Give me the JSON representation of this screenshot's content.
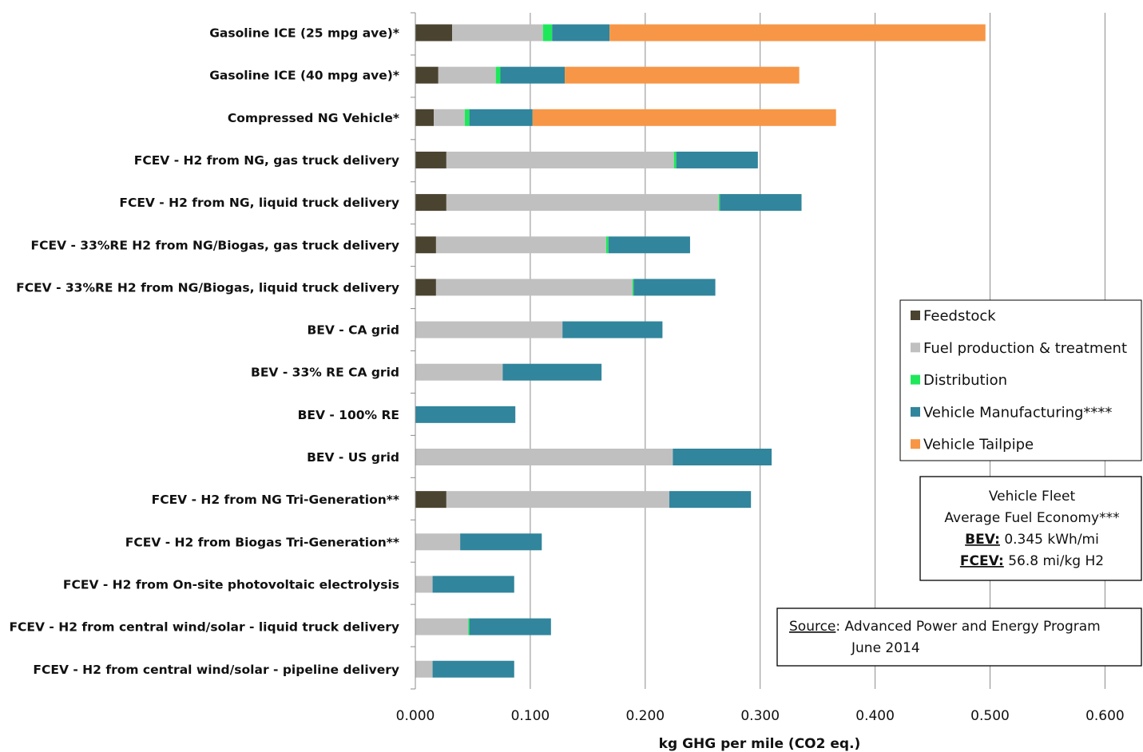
{
  "chart_data": {
    "type": "bar",
    "orientation": "horizontal",
    "stacked": true,
    "categories": [
      "Gasoline ICE (25 mpg ave)*",
      "Gasoline ICE (40 mpg ave)*",
      "Compressed NG Vehicle*",
      "FCEV - H2 from NG, gas truck delivery",
      "FCEV - H2 from NG, liquid truck delivery",
      "FCEV - 33%RE H2 from NG/Biogas, gas truck delivery",
      "FCEV - 33%RE H2 from NG/Biogas, liquid truck delivery",
      "BEV - CA grid",
      "BEV - 33% RE CA grid",
      "BEV - 100% RE",
      "BEV - US grid",
      "FCEV - H2 from NG Tri-Generation**",
      "FCEV - H2 from Biogas Tri-Generation**",
      "FCEV - H2 from On-site photovoltaic electrolysis",
      "FCEV - H2 from central wind/solar - liquid truck delivery",
      "FCEV - H2 from central wind/solar - pipeline delivery"
    ],
    "series": [
      {
        "name": "Feedstock",
        "color": "#4a4330",
        "values": [
          0.032,
          0.02,
          0.016,
          0.027,
          0.027,
          0.018,
          0.018,
          0,
          0,
          0,
          0,
          0.027,
          0,
          0,
          0,
          0
        ]
      },
      {
        "name": "Fuel production & treatment",
        "color": "#c0c0c0",
        "values": [
          0.079,
          0.05,
          0.027,
          0.198,
          0.237,
          0.148,
          0.171,
          0.128,
          0.076,
          0,
          0.224,
          0.194,
          0.039,
          0.015,
          0.046,
          0.015
        ]
      },
      {
        "name": "Distribution",
        "color": "#1ee85a",
        "values": [
          0.008,
          0.004,
          0.004,
          0.002,
          0.001,
          0.002,
          0.001,
          0,
          0,
          0,
          0,
          0,
          0,
          0,
          0.001,
          0
        ]
      },
      {
        "name": "Vehicle Manufacturing****",
        "color": "#31859c",
        "values": [
          0.05,
          0.056,
          0.055,
          0.071,
          0.071,
          0.071,
          0.071,
          0.087,
          0.086,
          0.087,
          0.086,
          0.071,
          0.071,
          0.071,
          0.071,
          0.071
        ]
      },
      {
        "name": "Vehicle Tailpipe",
        "color": "#f79646",
        "values": [
          0.327,
          0.204,
          0.264,
          0,
          0,
          0,
          0,
          0,
          0,
          0,
          0,
          0,
          0,
          0,
          0,
          0
        ]
      }
    ],
    "xlabel": "kg GHG per mile (CO2 eq.)",
    "xlim": [
      0,
      0.6
    ],
    "xticks": [
      "0.000",
      "0.100",
      "0.200",
      "0.300",
      "0.400",
      "0.500",
      "0.600"
    ],
    "grid": true,
    "legend": "right",
    "notes": {
      "fleet_title_1": "Vehicle Fleet",
      "fleet_title_2": "Average Fuel Economy***",
      "bev_label": "BEV:",
      "bev_value": " 0.345 kWh/mi",
      "fcev_label": "FCEV:",
      "fcev_value": " 56.8 mi/kg H2",
      "source_label": "Source",
      "source_text": ": Advanced Power and Energy Program",
      "source_date": "June 2014"
    }
  }
}
